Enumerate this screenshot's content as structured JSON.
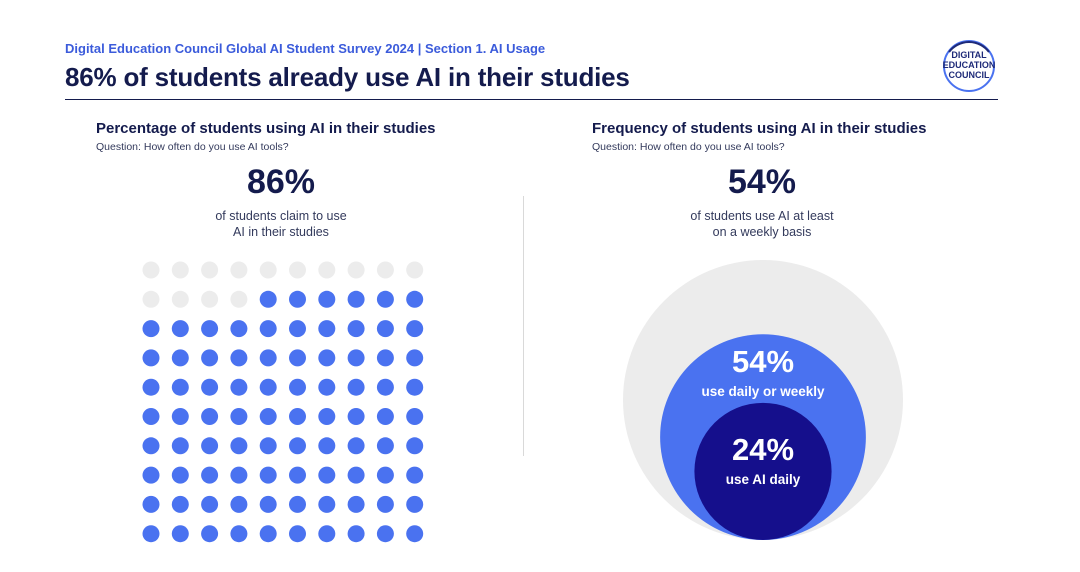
{
  "header": {
    "kicker": "Digital Education Council Global AI Student Survey 2024 | Section 1. AI Usage",
    "headline": "86% of students already use AI in their studies",
    "logo_text": [
      "DIGITAL",
      "EDUCATION",
      "COUNCIL"
    ]
  },
  "left_panel": {
    "title": "Percentage of students using AI in their studies",
    "question": "Question: How often do you use AI tools?",
    "big_value": "86%",
    "caption_lines": [
      "of students claim to use",
      "AI in their studies"
    ]
  },
  "right_panel": {
    "title": "Frequency of students using AI in their studies",
    "question": "Question: How often do you use AI tools?",
    "big_value": "54%",
    "caption_lines": [
      "of students use AI at least",
      "on a weekly basis"
    ]
  },
  "colors": {
    "navy": "#141b4d",
    "accent_blue": "#4a72f0",
    "dark_blue": "#150f8c",
    "empty_gray": "#ececec"
  },
  "chart_data": [
    {
      "type": "waffle",
      "grid": {
        "rows": 10,
        "cols": 10
      },
      "total": 100,
      "filled": 86,
      "empty": 14
    },
    {
      "type": "nested-circles",
      "circles": [
        {
          "value": 100,
          "label": "",
          "value_label": ""
        },
        {
          "value": 54,
          "value_label": "54%",
          "label": "use daily or weekly"
        },
        {
          "value": 24,
          "value_label": "24%",
          "label": "use AI daily"
        }
      ]
    }
  ]
}
